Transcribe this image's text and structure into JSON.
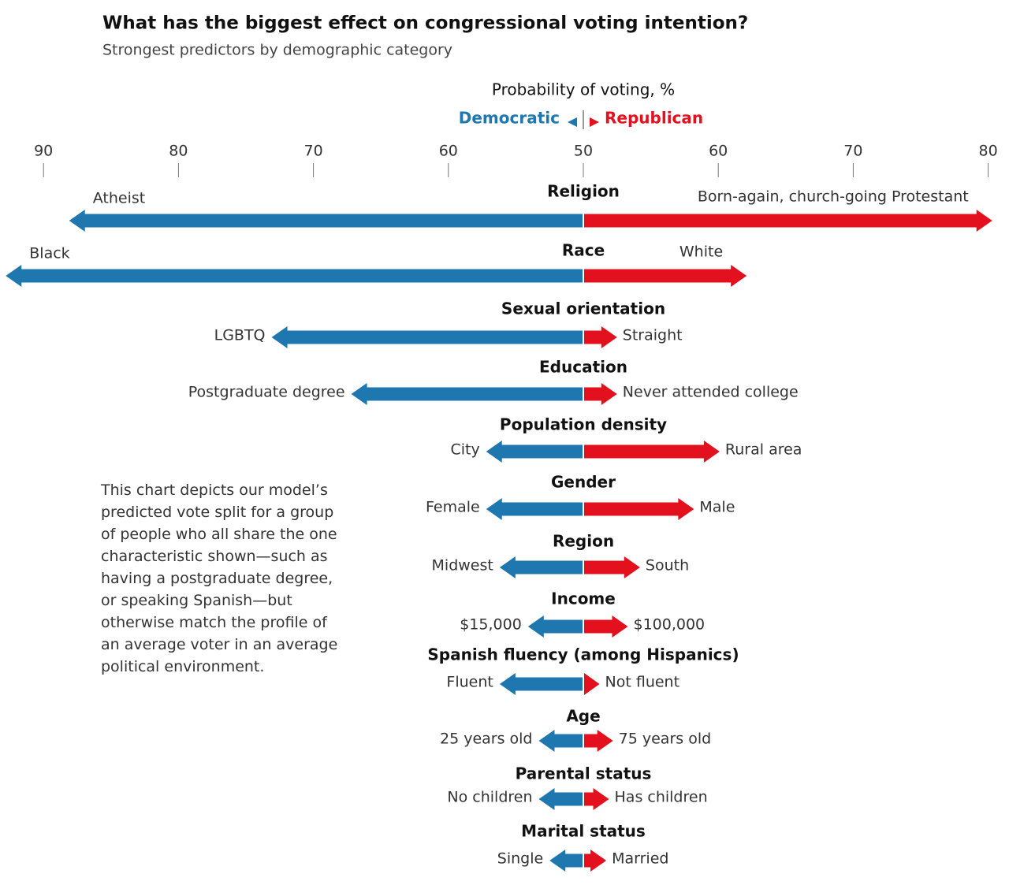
{
  "chart_data": {
    "type": "diverging_arrow",
    "title": "What has the biggest effect on congressional voting intention?",
    "subtitle": "Strongest predictors by demographic category",
    "axis_label": "Probability of voting, %",
    "xlim_left": [
      50,
      93
    ],
    "xlim_right": [
      50,
      80.5
    ],
    "xticks_left": [
      90,
      80,
      70,
      60,
      50
    ],
    "xticks_right": [
      60,
      70,
      80
    ],
    "categories": [
      "Religion",
      "Race",
      "Sexual orientation",
      "Education",
      "Population density",
      "Gender",
      "Region",
      "Income",
      "Spanish fluency (among Hispanics)",
      "Age",
      "Parental status",
      "Marital status"
    ],
    "series": [
      {
        "name": "Democratic",
        "color": "#1f77b0",
        "labels": [
          "Atheist",
          "Black",
          "LGBTQ",
          "Postgraduate degree",
          "City",
          "Female",
          "Midwest",
          "$15,000",
          "Fluent",
          "25 years old",
          "No children",
          "Single"
        ],
        "values": [
          88.1,
          92.8,
          73.1,
          67.2,
          57.2,
          57.2,
          56.2,
          54.1,
          56.2,
          53.3,
          53.3,
          52.5
        ]
      },
      {
        "name": "Republican",
        "color": "#e3101e",
        "labels": [
          "Born-again, church-going Protestant",
          "White",
          "Straight",
          "Never attended college",
          "Rural area",
          "Male",
          "South",
          "$100,000",
          "Not fluent",
          "75 years old",
          "Has children",
          "Married"
        ],
        "values": [
          80.3,
          62.1,
          52.5,
          52.5,
          60.1,
          58.2,
          54.2,
          53.3,
          51.2,
          52.2,
          51.9,
          51.7
        ]
      }
    ],
    "note": "This chart depicts our model’s predicted vote split for a group of people who all share the one characteristic shown—such as having a postgraduate degree, or speaking Spanish—but otherwise match the profile of an average voter in an average political environment."
  }
}
